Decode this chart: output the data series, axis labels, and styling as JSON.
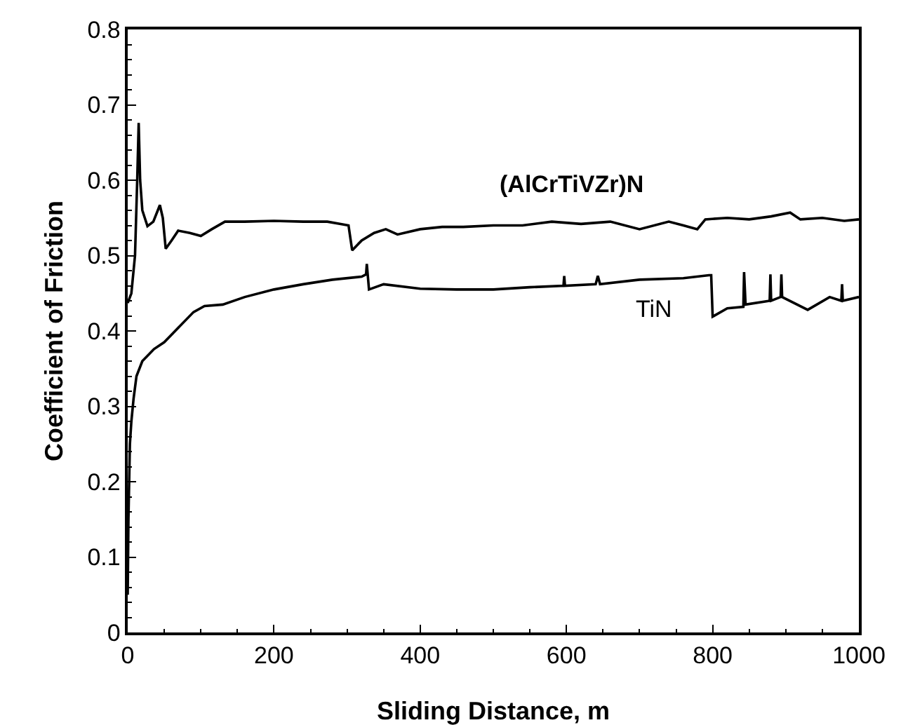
{
  "chart_data": {
    "type": "line",
    "xlabel": "Sliding Distance, m",
    "ylabel": "Coefficient of Friction",
    "xlim": [
      0,
      1000
    ],
    "ylim": [
      0,
      0.8
    ],
    "xticks": [
      0,
      {
        "value": 50,
        "label": null
      },
      {
        "value": 100,
        "label": null
      },
      {
        "value": 150,
        "label": null
      },
      200,
      {
        "value": 250,
        "label": null
      },
      {
        "value": 300,
        "label": null
      },
      {
        "value": 350,
        "label": null
      },
      400,
      {
        "value": 450,
        "label": null
      },
      {
        "value": 500,
        "label": null
      },
      {
        "value": 550,
        "label": null
      },
      600,
      {
        "value": 650,
        "label": null
      },
      {
        "value": 700,
        "label": null
      },
      {
        "value": 750,
        "label": null
      },
      800,
      {
        "value": 850,
        "label": null
      },
      {
        "value": 900,
        "label": null
      },
      {
        "value": 950,
        "label": null
      },
      1000
    ],
    "yticks": [
      0,
      {
        "value": 0.02,
        "label": null
      },
      {
        "value": 0.04,
        "label": null
      },
      {
        "value": 0.06,
        "label": null
      },
      {
        "value": 0.08,
        "label": null
      },
      0.1,
      {
        "value": 0.12,
        "label": null
      },
      {
        "value": 0.14,
        "label": null
      },
      {
        "value": 0.16,
        "label": null
      },
      {
        "value": 0.18,
        "label": null
      },
      0.2,
      {
        "value": 0.22,
        "label": null
      },
      {
        "value": 0.24,
        "label": null
      },
      {
        "value": 0.26,
        "label": null
      },
      {
        "value": 0.28,
        "label": null
      },
      0.3,
      {
        "value": 0.32,
        "label": null
      },
      {
        "value": 0.34,
        "label": null
      },
      {
        "value": 0.36,
        "label": null
      },
      {
        "value": 0.38,
        "label": null
      },
      0.4,
      {
        "value": 0.42,
        "label": null
      },
      {
        "value": 0.44,
        "label": null
      },
      {
        "value": 0.46,
        "label": null
      },
      {
        "value": 0.48,
        "label": null
      },
      0.5,
      {
        "value": 0.52,
        "label": null
      },
      {
        "value": 0.54,
        "label": null
      },
      {
        "value": 0.56,
        "label": null
      },
      {
        "value": 0.58,
        "label": null
      },
      0.6,
      {
        "value": 0.62,
        "label": null
      },
      {
        "value": 0.64,
        "label": null
      },
      {
        "value": 0.66,
        "label": null
      },
      {
        "value": 0.68,
        "label": null
      },
      0.7,
      {
        "value": 0.72,
        "label": null
      },
      {
        "value": 0.74,
        "label": null
      },
      {
        "value": 0.76,
        "label": null
      },
      {
        "value": 0.78,
        "label": null
      },
      0.8
    ],
    "grid": false,
    "legend": false,
    "marker": "none",
    "line_style": "solid",
    "series": [
      {
        "name": "(AlCrTiVZr)N",
        "color": "#000000",
        "x": [
          0,
          5,
          10,
          13,
          15,
          17,
          20,
          27,
          35,
          44,
          48,
          52,
          60,
          69,
          85,
          100,
          115,
          133,
          160,
          200,
          240,
          273,
          290,
          302,
          305,
          307,
          320,
          337,
          353,
          369,
          400,
          430,
          459,
          500,
          540,
          580,
          620,
          660,
          700,
          740,
          760,
          779,
          790,
          820,
          850,
          880,
          906,
          920,
          950,
          980,
          1000
        ],
        "values": [
          0.437,
          0.45,
          0.5,
          0.6,
          0.676,
          0.6,
          0.56,
          0.539,
          0.545,
          0.567,
          0.55,
          0.509,
          0.52,
          0.533,
          0.53,
          0.526,
          0.535,
          0.545,
          0.545,
          0.546,
          0.545,
          0.545,
          0.542,
          0.54,
          0.52,
          0.507,
          0.52,
          0.53,
          0.535,
          0.528,
          0.535,
          0.538,
          0.538,
          0.54,
          0.54,
          0.545,
          0.542,
          0.545,
          0.535,
          0.545,
          0.54,
          0.535,
          0.548,
          0.55,
          0.548,
          0.552,
          0.557,
          0.548,
          0.55,
          0.546,
          0.548
        ]
      },
      {
        "name": "TiN",
        "color": "#000000",
        "x": [
          0,
          1,
          2,
          3,
          5,
          8,
          12,
          20,
          36,
          50,
          70,
          90,
          105,
          130,
          160,
          200,
          240,
          280,
          320,
          326,
          327,
          330,
          350,
          400,
          450,
          500,
          550,
          596,
          597,
          598,
          640,
          643,
          646,
          700,
          760,
          795,
          798,
          800,
          820,
          842,
          843,
          845,
          878,
          879,
          880,
          893,
          894,
          895,
          930,
          960,
          976,
          977,
          978,
          1000
        ],
        "values": [
          0.05,
          0.15,
          0.2,
          0.25,
          0.28,
          0.31,
          0.34,
          0.36,
          0.376,
          0.385,
          0.405,
          0.425,
          0.433,
          0.435,
          0.445,
          0.455,
          0.462,
          0.468,
          0.472,
          0.475,
          0.489,
          0.455,
          0.462,
          0.456,
          0.455,
          0.455,
          0.458,
          0.46,
          0.473,
          0.46,
          0.462,
          0.473,
          0.462,
          0.468,
          0.47,
          0.474,
          0.474,
          0.419,
          0.43,
          0.432,
          0.478,
          0.435,
          0.44,
          0.475,
          0.44,
          0.445,
          0.475,
          0.445,
          0.428,
          0.445,
          0.44,
          0.462,
          0.44,
          0.445
        ]
      }
    ]
  }
}
